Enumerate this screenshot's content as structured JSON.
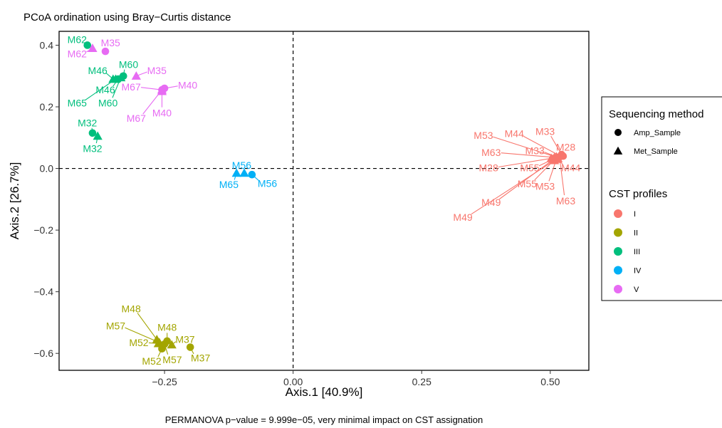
{
  "chart_data": {
    "type": "scatter",
    "title": "PCoA ordination using Bray−Curtis distance",
    "caption": "PERMANOVA p−value = 9.999e−05, very minimal impact on CST assignation",
    "xlabel": "Axis.1 [40.9%]",
    "ylabel": "Axis.2 [26.7%]",
    "xlim": [
      -0.455,
      0.575
    ],
    "ylim": [
      -0.655,
      0.445
    ],
    "xticks": [
      -0.25,
      0.0,
      0.25,
      0.5
    ],
    "xtick_labels": [
      "−0.25",
      "0.00",
      "0.25",
      "0.50"
    ],
    "yticks": [
      -0.6,
      -0.4,
      -0.2,
      0.0,
      0.2,
      0.4
    ],
    "ytick_labels": [
      "−0.6",
      "−0.4",
      "−0.2",
      "0.0",
      "0.2",
      "0.4"
    ],
    "grid": false,
    "reference_lines": {
      "x": 0,
      "y": 0,
      "style": "dashed"
    },
    "legend_position": "right",
    "shape_legend": {
      "title": "Sequencing method",
      "items": [
        {
          "label": "Amp_Sample",
          "shape": "circle"
        },
        {
          "label": "Met_Sample",
          "shape": "triangle"
        }
      ]
    },
    "color_legend": {
      "title": "CST profiles",
      "items": [
        {
          "label": "I",
          "color": "#F8766D"
        },
        {
          "label": "II",
          "color": "#A3A500"
        },
        {
          "label": "III",
          "color": "#00BF7D"
        },
        {
          "label": "IV",
          "color": "#00B0F6"
        },
        {
          "label": "V",
          "color": "#E76BF3"
        }
      ]
    },
    "series": [
      {
        "cst": "I",
        "color": "#F8766D",
        "points": [
          {
            "label": "M53",
            "method": "Amp",
            "x": 0.515,
            "y": 0.035,
            "lx": 0.37,
            "ly": 0.108
          },
          {
            "label": "M44",
            "method": "Amp",
            "x": 0.52,
            "y": 0.04,
            "lx": 0.43,
            "ly": 0.113
          },
          {
            "label": "M33",
            "method": "Amp",
            "x": 0.522,
            "y": 0.045,
            "lx": 0.49,
            "ly": 0.12
          },
          {
            "label": "M28",
            "method": "Amp",
            "x": 0.525,
            "y": 0.04,
            "lx": 0.53,
            "ly": 0.07
          },
          {
            "label": "M63",
            "method": "Amp",
            "x": 0.518,
            "y": 0.037,
            "lx": 0.53,
            "ly": -0.105
          },
          {
            "label": "M55",
            "method": "Amp",
            "x": 0.51,
            "y": 0.032,
            "lx": 0.455,
            "ly": -0.05
          },
          {
            "label": "M49",
            "method": "Amp",
            "x": 0.505,
            "y": 0.028,
            "lx": 0.385,
            "ly": -0.11
          },
          {
            "label": "M33",
            "method": "Met",
            "x": 0.512,
            "y": 0.038,
            "lx": 0.47,
            "ly": 0.058
          },
          {
            "label": "M63",
            "method": "Met",
            "x": 0.508,
            "y": 0.036,
            "lx": 0.385,
            "ly": 0.052
          },
          {
            "label": "M28",
            "method": "Met",
            "x": 0.502,
            "y": 0.033,
            "lx": 0.38,
            "ly": 0.002
          },
          {
            "label": "M55",
            "method": "Met",
            "x": 0.505,
            "y": 0.03,
            "lx": 0.46,
            "ly": 0.002
          },
          {
            "label": "M44",
            "method": "Met",
            "x": 0.515,
            "y": 0.032,
            "lx": 0.54,
            "ly": 0.002
          },
          {
            "label": "M53",
            "method": "Met",
            "x": 0.512,
            "y": 0.03,
            "lx": 0.49,
            "ly": -0.058
          },
          {
            "label": "M49",
            "method": "Met",
            "x": 0.508,
            "y": 0.026,
            "lx": 0.33,
            "ly": -0.158
          }
        ]
      },
      {
        "cst": "II",
        "color": "#A3A500",
        "points": [
          {
            "label": "M48",
            "method": "Amp",
            "x": -0.245,
            "y": -0.56,
            "lx": -0.245,
            "ly": -0.515
          },
          {
            "label": "M37",
            "method": "Amp",
            "x": -0.2,
            "y": -0.58,
            "lx": -0.18,
            "ly": -0.615
          },
          {
            "label": "M52",
            "method": "Amp",
            "x": -0.255,
            "y": -0.585,
            "lx": -0.275,
            "ly": -0.625
          },
          {
            "label": "M57",
            "method": "Amp",
            "x": -0.25,
            "y": -0.57,
            "lx": -0.235,
            "ly": -0.62
          },
          {
            "label": "M48",
            "method": "Met",
            "x": -0.265,
            "y": -0.555,
            "lx": -0.315,
            "ly": -0.455
          },
          {
            "label": "M57",
            "method": "Met",
            "x": -0.26,
            "y": -0.565,
            "lx": -0.345,
            "ly": -0.51
          },
          {
            "label": "M52",
            "method": "Met",
            "x": -0.262,
            "y": -0.568,
            "lx": -0.3,
            "ly": -0.565
          },
          {
            "label": "M37",
            "method": "Met",
            "x": -0.236,
            "y": -0.572,
            "lx": -0.21,
            "ly": -0.555
          }
        ]
      },
      {
        "cst": "III",
        "color": "#00BF7D",
        "points": [
          {
            "label": "M62",
            "method": "Amp",
            "x": -0.4,
            "y": 0.4,
            "lx": -0.42,
            "ly": 0.418
          },
          {
            "label": "M60",
            "method": "Amp",
            "x": -0.33,
            "y": 0.3,
            "lx": -0.32,
            "ly": 0.338
          },
          {
            "label": "M46",
            "method": "Amp",
            "x": -0.34,
            "y": 0.29,
            "lx": -0.365,
            "ly": 0.255
          },
          {
            "label": "M32",
            "method": "Amp",
            "x": -0.39,
            "y": 0.115,
            "lx": -0.4,
            "ly": 0.148
          },
          {
            "label": "M46",
            "method": "Met",
            "x": -0.35,
            "y": 0.29,
            "lx": -0.38,
            "ly": 0.318
          },
          {
            "label": "M60",
            "method": "Met",
            "x": -0.335,
            "y": 0.295,
            "lx": -0.36,
            "ly": 0.213
          },
          {
            "label": "M65",
            "method": "Met",
            "x": -0.345,
            "y": 0.29,
            "lx": -0.42,
            "ly": 0.213
          },
          {
            "label": "M32",
            "method": "Met",
            "x": -0.38,
            "y": 0.105,
            "lx": -0.39,
            "ly": 0.065
          }
        ]
      },
      {
        "cst": "IV",
        "color": "#00B0F6",
        "points": [
          {
            "label": "M56",
            "method": "Amp",
            "x": -0.08,
            "y": -0.02,
            "lx": -0.05,
            "ly": -0.048
          },
          {
            "label": "M56",
            "method": "Met",
            "x": -0.095,
            "y": -0.015,
            "lx": -0.1,
            "ly": 0.01
          },
          {
            "label": "M65",
            "method": "Met",
            "x": -0.11,
            "y": -0.015,
            "lx": -0.125,
            "ly": -0.052
          }
        ]
      },
      {
        "cst": "V",
        "color": "#E76BF3",
        "points": [
          {
            "label": "M35",
            "method": "Amp",
            "x": -0.365,
            "y": 0.38,
            "lx": -0.355,
            "ly": 0.408
          },
          {
            "label": "M40",
            "method": "Amp",
            "x": -0.25,
            "y": 0.26,
            "lx": -0.205,
            "ly": 0.27
          },
          {
            "label": "M67",
            "method": "Amp",
            "x": -0.255,
            "y": 0.255,
            "lx": -0.315,
            "ly": 0.265
          },
          {
            "label": "M62",
            "method": "Met",
            "x": -0.39,
            "y": 0.39,
            "lx": -0.42,
            "ly": 0.372
          },
          {
            "label": "M35",
            "method": "Met",
            "x": -0.305,
            "y": 0.3,
            "lx": -0.265,
            "ly": 0.318
          },
          {
            "label": "M40",
            "method": "Met",
            "x": -0.255,
            "y": 0.25,
            "lx": -0.255,
            "ly": 0.18
          },
          {
            "label": "M67",
            "method": "Met",
            "x": -0.255,
            "y": 0.255,
            "lx": -0.305,
            "ly": 0.163
          }
        ]
      }
    ]
  }
}
